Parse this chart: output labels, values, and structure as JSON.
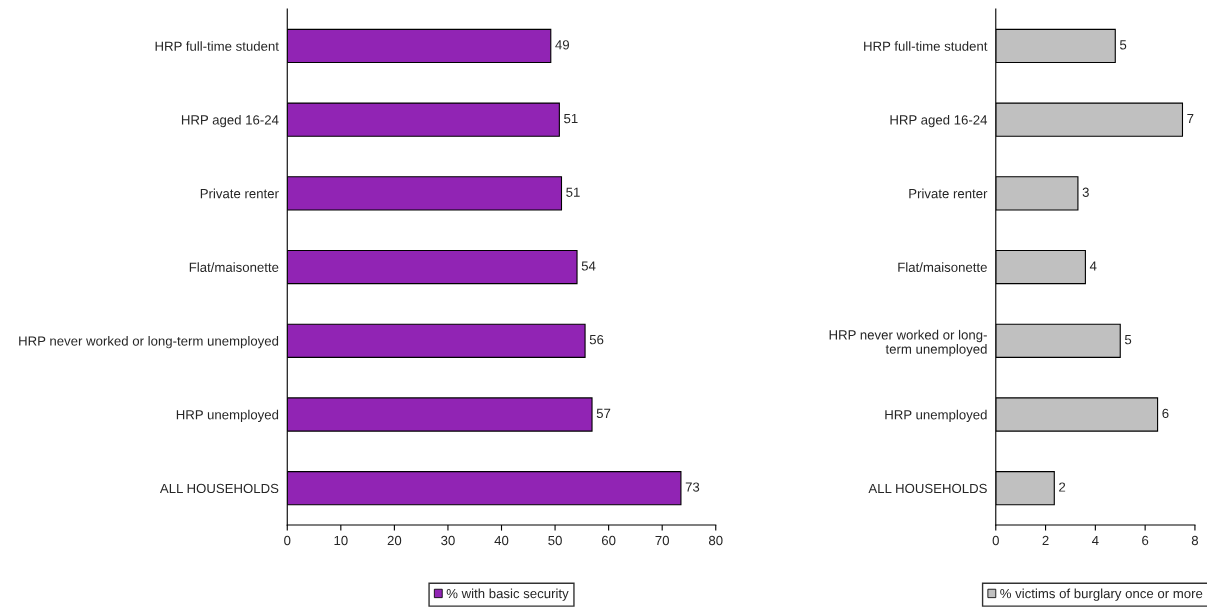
{
  "chart_data": [
    {
      "type": "bar",
      "orientation": "horizontal",
      "categories": [
        "HRP full-time student",
        "HRP aged 16-24",
        "Private renter",
        "Flat/maisonette",
        "HRP never worked or long-term unemployed",
        "HRP unemployed",
        "ALL HOUSEHOLDS"
      ],
      "series": [
        {
          "name": "% with basic security",
          "color": "#9124b4",
          "values": [
            49.2,
            50.8,
            51.2,
            54.1,
            55.6,
            56.9,
            73.5
          ],
          "value_labels": [
            "49",
            "51",
            "51",
            "54",
            "56",
            "57",
            "73"
          ]
        }
      ],
      "xlim": [
        0,
        80
      ],
      "xticks": [
        0,
        10,
        20,
        30,
        40,
        50,
        60,
        70,
        80
      ],
      "legend": "bottom",
      "grid": false
    },
    {
      "type": "bar",
      "orientation": "horizontal",
      "categories": [
        "HRP full-time student",
        "HRP aged 16-24",
        "Private renter",
        "Flat/maisonette",
        "HRP never worked or long-\nterm unemployed",
        "HRP unemployed",
        "ALL HOUSEHOLDS"
      ],
      "series": [
        {
          "name": "% victims of burglary once or more",
          "color": "#c0c0c0",
          "values": [
            4.8,
            7.5,
            3.3,
            3.6,
            5.0,
            6.5,
            2.35
          ],
          "value_labels": [
            "5",
            "7",
            "3",
            "4",
            "5",
            "6",
            "2"
          ]
        }
      ],
      "xlim": [
        0,
        8
      ],
      "xticks": [
        0,
        2,
        4,
        6,
        8
      ],
      "legend": "bottom",
      "grid": false
    }
  ]
}
